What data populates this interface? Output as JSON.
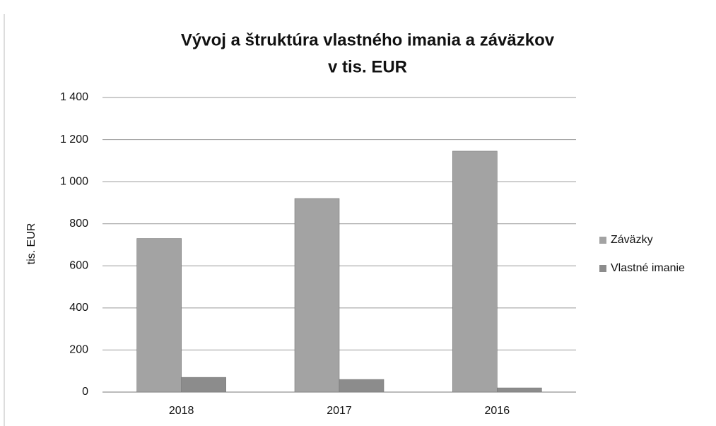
{
  "chart_data": {
    "type": "bar",
    "title": [
      "Vývoj a štruktúra vlastného imania a záväzkov",
      "v tis. EUR"
    ],
    "y_label": "tis. EUR",
    "categories": [
      "2018",
      "2017",
      "2016"
    ],
    "series": [
      {
        "name": "Záväzky",
        "color": "#a3a3a3",
        "values": [
          730,
          920,
          1145
        ]
      },
      {
        "name": "Vlastné imanie",
        "color": "#8c8c8c",
        "values": [
          70,
          60,
          20
        ]
      }
    ],
    "ylim": [
      0,
      1400
    ],
    "yticks": [
      0,
      200,
      400,
      600,
      800,
      {
        "value": 1000,
        "label": "1 000"
      },
      {
        "value": 1200,
        "label": "1 200"
      },
      {
        "value": 1400,
        "label": "1 400"
      }
    ],
    "grid": true,
    "legend": "right"
  }
}
